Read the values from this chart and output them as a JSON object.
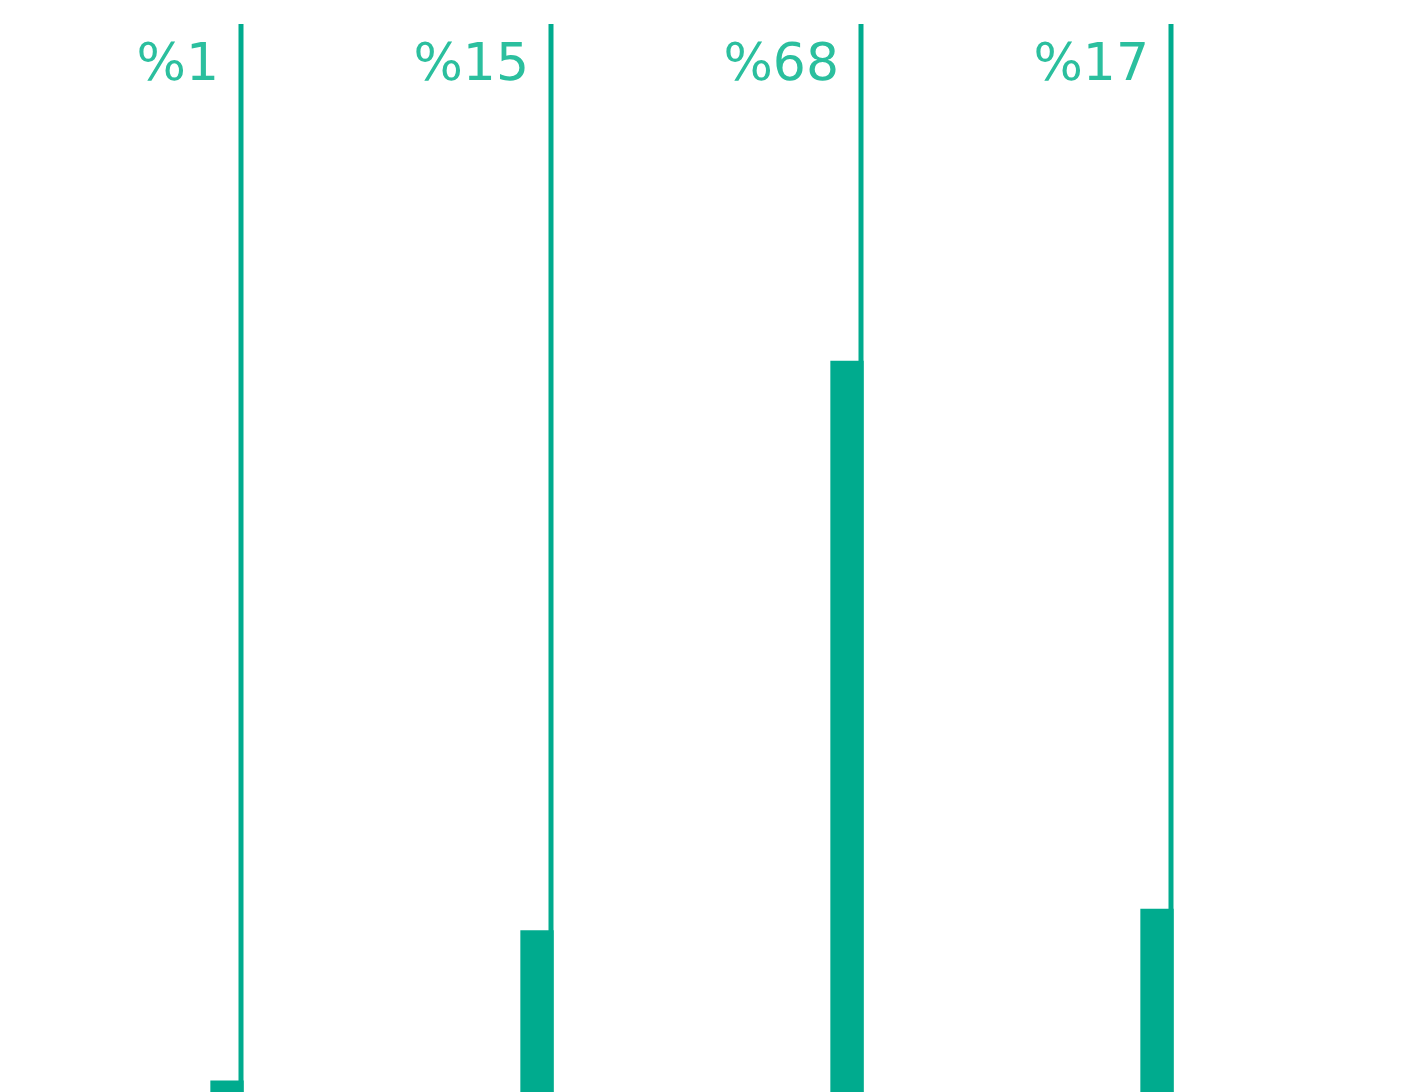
{
  "chart_data": {
    "type": "bar",
    "categories": [
      null,
      null,
      null,
      null
    ],
    "values": [
      1,
      15,
      68,
      17
    ],
    "value_labels": [
      "%1",
      "%15",
      "%68",
      "%17"
    ],
    "color": "#00ab8e",
    "tick_labels": false
  }
}
